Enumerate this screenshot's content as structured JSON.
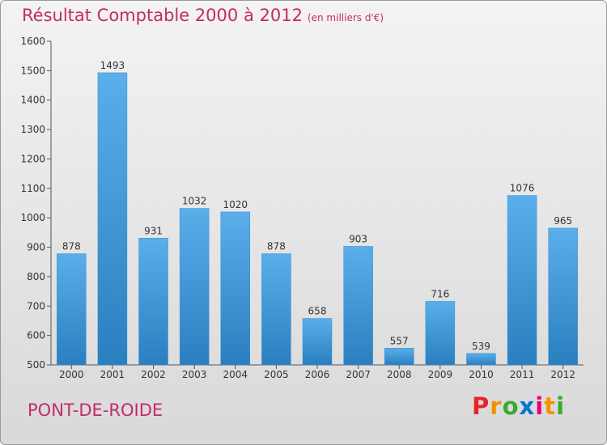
{
  "title": "Résultat Comptable 2000 à 2012",
  "subtitle": "(en milliers d'€)",
  "place": "PONT-DE-ROIDE",
  "brand": {
    "letters": [
      "P",
      "r",
      "o",
      "x",
      "i",
      "t",
      "i"
    ],
    "colors": [
      "#e8232a",
      "#f39200",
      "#3aa935",
      "#0077c8",
      "#e4007c",
      "#f39200",
      "#3aa935"
    ]
  },
  "chart_data": {
    "type": "bar",
    "title": "Résultat Comptable 2000 à 2012",
    "xlabel": "",
    "ylabel": "",
    "ylim": [
      500,
      1600
    ],
    "yticks": [
      500,
      600,
      700,
      800,
      900,
      1000,
      1100,
      1200,
      1300,
      1400,
      1500,
      1600
    ],
    "categories": [
      "2000",
      "2001",
      "2002",
      "2003",
      "2004",
      "2005",
      "2006",
      "2007",
      "2008",
      "2009",
      "2010",
      "2011",
      "2012"
    ],
    "values": [
      878,
      1493,
      931,
      1032,
      1020,
      878,
      658,
      903,
      557,
      716,
      539,
      1076,
      965
    ],
    "bar_color_top": "#5aaeea",
    "bar_color_bottom": "#2a7fc0"
  }
}
